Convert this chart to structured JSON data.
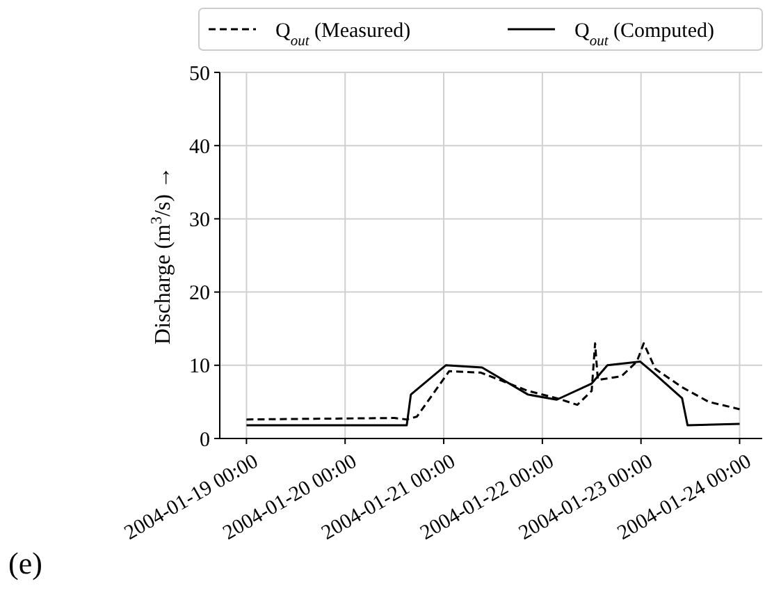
{
  "chart_data": {
    "type": "line",
    "ylabel": "Discharge (m$^{3}$/s) →",
    "annotations": [
      "(e)"
    ],
    "xlim": [
      "2004-01-18T17:30",
      "2004-01-24T05:30"
    ],
    "xticks": [
      {
        "value": "2004-01-19T00:00",
        "label": "2004-01-19 00:00"
      },
      {
        "value": "2004-01-20T00:00",
        "label": "2004-01-20 00:00"
      },
      {
        "value": "2004-01-21T00:00",
        "label": "2004-01-21 00:00"
      },
      {
        "value": "2004-01-22T00:00",
        "label": "2004-01-22 00:00"
      },
      {
        "value": "2004-01-23T00:00",
        "label": "2004-01-23 00:00"
      },
      {
        "value": "2004-01-24T00:00",
        "label": "2004-01-24 00:00"
      }
    ],
    "ylim": [
      0,
      50
    ],
    "yticks": [
      0,
      10,
      20,
      30,
      40,
      50
    ],
    "grid": true,
    "legend": "top",
    "series": [
      {
        "name": "Q$_{out}$ (Measured)",
        "color": "#000000",
        "line_style": "dashed",
        "x": [
          "2004-01-19T00:00",
          "2004-01-20T12:00",
          "2004-01-20T15:00",
          "2004-01-20T17:30",
          "2004-01-21T01:20",
          "2004-01-21T09:00",
          "2004-01-21T20:30",
          "2004-01-22T03:30",
          "2004-01-22T08:30",
          "2004-01-22T12:00",
          "2004-01-22T12:50",
          "2004-01-22T13:30",
          "2004-01-22T19:15",
          "2004-01-22T23:00",
          "2004-01-23T00:40",
          "2004-01-23T03:30",
          "2004-01-23T10:00",
          "2004-01-23T16:30",
          "2004-01-24T00:00"
        ],
        "values": [
          2.6,
          2.8,
          2.6,
          3,
          9.2,
          9,
          6.5,
          5.5,
          4.6,
          6.5,
          13,
          8,
          8.5,
          10.5,
          13,
          9.5,
          7,
          5,
          4
        ]
      },
      {
        "name": "Q$_{out}$ (Computed)",
        "color": "#000000",
        "line_style": "solid",
        "x": [
          "2004-01-19T00:00",
          "2004-01-20T15:00",
          "2004-01-20T16:00",
          "2004-01-21T00:30",
          "2004-01-21T09:20",
          "2004-01-21T20:30",
          "2004-01-22T03:30",
          "2004-01-22T12:00",
          "2004-01-22T15:50",
          "2004-01-22T23:50",
          "2004-01-23T03:00",
          "2004-01-23T10:00",
          "2004-01-23T11:20",
          "2004-01-24T00:00"
        ],
        "values": [
          1.8,
          1.8,
          6,
          10,
          9.7,
          6,
          5.3,
          7.5,
          10,
          10.5,
          9,
          5.5,
          1.8,
          2
        ]
      }
    ]
  }
}
